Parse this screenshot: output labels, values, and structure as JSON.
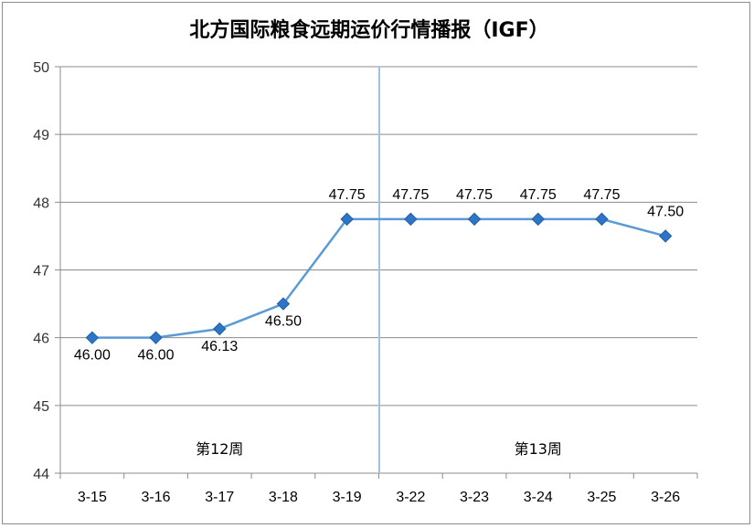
{
  "chart_data": {
    "type": "line",
    "title": "北方国际粮食远期运价行情播报（IGF）",
    "categories": [
      "3-15",
      "3-16",
      "3-17",
      "3-18",
      "3-19",
      "3-22",
      "3-23",
      "3-24",
      "3-25",
      "3-26"
    ],
    "series": [
      {
        "values": [
          46.0,
          46.0,
          46.13,
          46.5,
          47.75,
          47.75,
          47.75,
          47.75,
          47.75,
          47.5
        ],
        "labels": [
          "46.00",
          "46.00",
          "46.13",
          "46.50",
          "47.75",
          "47.75",
          "47.75",
          "47.75",
          "47.75",
          "47.50"
        ]
      }
    ],
    "ylim": [
      44,
      50
    ],
    "yticks": [
      "44",
      "45",
      "46",
      "47",
      "48",
      "49",
      "50"
    ],
    "grid": true,
    "annotations": [
      {
        "text": "第12周"
      },
      {
        "text": "第13周"
      }
    ],
    "colors": {
      "line": "#5b9bd5",
      "marker": "#2e75c6",
      "divider": "#9dc3e6",
      "grid": "#8c8c8c"
    }
  }
}
